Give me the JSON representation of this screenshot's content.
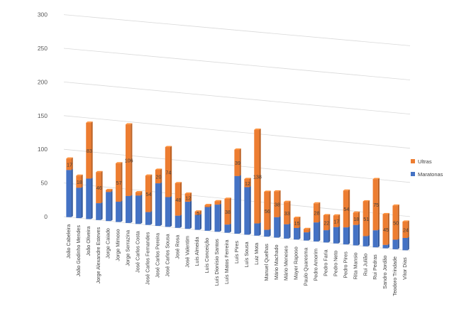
{
  "chart_data": {
    "type": "bar",
    "stacked": true,
    "three_d": true,
    "ylim": [
      0,
      300
    ],
    "yticks": [
      "0",
      "50",
      "100",
      "150",
      "200",
      "250",
      "300"
    ],
    "categories": [
      "João Cabeleira",
      "João Godinho Mendes",
      "João Oliveira",
      "Jorge Alexandre Esteves",
      "Jorge Caiado",
      "Jorge Mimoso",
      "Jorge Serrazina",
      "José Carlos Costa",
      "José Carlos Fernandes",
      "José Carlos Pereira",
      "José Carlos Sousa",
      "José Rosa",
      "José Valentim",
      "Luís Almeida",
      "Luís Conceição",
      "Luís Dionísio Santos",
      "Luís Matos Ferreira",
      "Luís Pires",
      "Luís Sousa",
      "Luiz Mota",
      "Manuel Quelhas",
      "Mário Machado",
      "Mário Meneses",
      "Mayer Raposo",
      "Paulo Quaresma",
      "Pedro Amorim",
      "Pedro Faria",
      "Pedro Neto",
      "Pedro Pires",
      "Rita Mansio",
      "Rui Julião",
      "Rui Pedras",
      "Sandro Jordão",
      "Teodoro Trindade",
      "Vítor Dias"
    ],
    "series": [
      {
        "name": "Maratonas",
        "color": "#4472c4",
        "values": [
          70,
          45,
          60,
          25,
          43,
          30,
          40,
          42,
          19,
          63,
          44,
          18,
          40,
          22,
          35,
          40,
          12,
          85,
          70,
          18,
          10,
          30,
          21,
          17,
          12,
          28,
          18,
          24,
          25,
          30,
          15,
          25,
          5,
          14,
          18
        ]
      },
      {
        "name": "Ultras",
        "color": "#ed7d31",
        "values": [
          17,
          18,
          83,
          46,
          3,
          57,
          106,
          5,
          54,
          20,
          74,
          48,
          12,
          5,
          3,
          5,
          38,
          39,
          12,
          138,
          56,
          38,
          33,
          15,
          5,
          28,
          22,
          17,
          54,
          18,
          51,
          75,
          45,
          50,
          24
        ]
      }
    ],
    "data_labels": [
      "17",
      "18",
      "83",
      "46",
      "",
      "57",
      "106",
      "",
      "54",
      "20",
      "74",
      "48",
      "12",
      "5",
      "",
      "",
      "38",
      "39",
      "12",
      "138",
      "56",
      "38",
      "33",
      "15",
      "",
      "28",
      "22",
      "17",
      "54",
      "18",
      "51",
      "75",
      "45",
      "50",
      "24"
    ],
    "legend_position": "right"
  }
}
